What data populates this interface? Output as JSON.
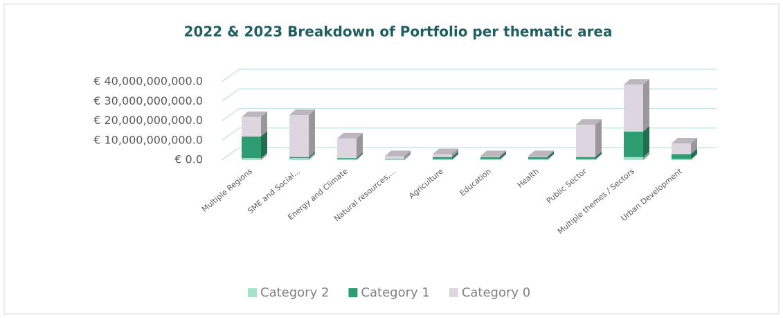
{
  "chart_data": {
    "type": "bar3d_stacked",
    "title": "2022 & 2023 Breakdown of Portfolio per thematic area",
    "categories": [
      "Multiple Regions",
      "SME and Social...",
      "Energy and Climate",
      "Natural resources,...",
      "Agriculture",
      "Education",
      "Health",
      "Public Sector",
      "Multiple themes / Sectors",
      "Urban Development"
    ],
    "series": [
      {
        "name": "Category 2",
        "color": "#a8e2cd",
        "values": [
          1000000000,
          1000000000,
          500000000,
          300000000,
          500000000,
          500000000,
          500000000,
          500000000,
          1500000000,
          500000000
        ]
      },
      {
        "name": "Category 1",
        "color": "#2e9e72",
        "values": [
          11000000000,
          500000000,
          500000000,
          200000000,
          1000000000,
          1000000000,
          1000000000,
          1000000000,
          13000000000,
          2500000000
        ]
      },
      {
        "name": "Category 0",
        "color": "#ddd6e0",
        "values": [
          10000000000,
          21500000000,
          10000000000,
          1500000000,
          1500000000,
          500000000,
          500000000,
          16500000000,
          24000000000,
          5500000000
        ]
      }
    ],
    "ylim": [
      0,
      40000000000
    ],
    "yticks": [
      {
        "value": 0,
        "label": "€ 0.0"
      },
      {
        "value": 10000000000,
        "label": "€ 10,000,000,000.0"
      },
      {
        "value": 20000000000,
        "label": "€ 20,000,000,000.0"
      },
      {
        "value": 30000000000,
        "label": "€ 30,000,000,000.0"
      },
      {
        "value": 40000000000,
        "label": "€ 40,000,000,000.0"
      }
    ],
    "grid": true,
    "legend": "bottom"
  }
}
